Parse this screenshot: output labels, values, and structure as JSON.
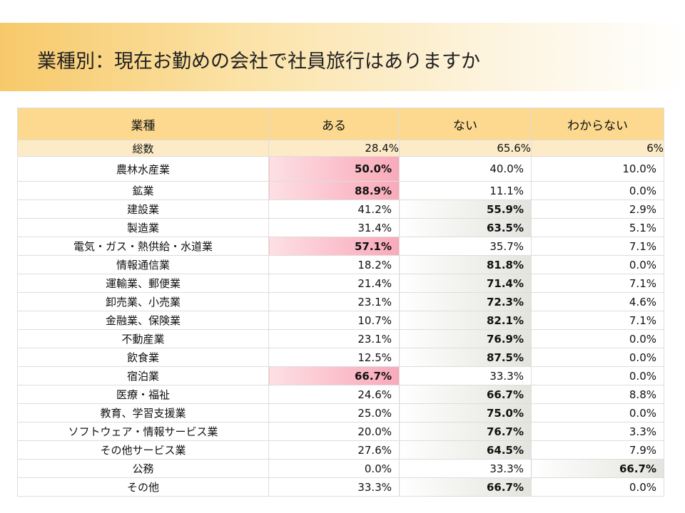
{
  "title": "業種別：現在お勤めの会社で社員旅行はありますか",
  "table": {
    "headers": [
      "業種",
      "ある",
      "ない",
      "わからない"
    ],
    "total": {
      "label": "総数",
      "values": [
        "28.4%",
        "65.6%",
        "6%"
      ]
    },
    "rows": [
      {
        "label": "農林水産業",
        "values": [
          "50.0%",
          "40.0%",
          "10.0%"
        ],
        "highlight_col": 0
      },
      {
        "label": "鉱業",
        "values": [
          "88.9%",
          "11.1%",
          "0.0%"
        ],
        "highlight_col": 0
      },
      {
        "label": "建設業",
        "values": [
          "41.2%",
          "55.9%",
          "2.9%"
        ],
        "highlight_col": 1
      },
      {
        "label": "製造業",
        "values": [
          "31.4%",
          "63.5%",
          "5.1%"
        ],
        "highlight_col": 1
      },
      {
        "label": "電気・ガス・熱供給・水道業",
        "values": [
          "57.1%",
          "35.7%",
          "7.1%"
        ],
        "highlight_col": 0
      },
      {
        "label": "情報通信業",
        "values": [
          "18.2%",
          "81.8%",
          "0.0%"
        ],
        "highlight_col": 1
      },
      {
        "label": "運輸業、郵便業",
        "values": [
          "21.4%",
          "71.4%",
          "7.1%"
        ],
        "highlight_col": 1
      },
      {
        "label": "卸売業、小売業",
        "values": [
          "23.1%",
          "72.3%",
          "4.6%"
        ],
        "highlight_col": 1
      },
      {
        "label": "金融業、保険業",
        "values": [
          "10.7%",
          "82.1%",
          "7.1%"
        ],
        "highlight_col": 1
      },
      {
        "label": "不動産業",
        "values": [
          "23.1%",
          "76.9%",
          "0.0%"
        ],
        "highlight_col": 1
      },
      {
        "label": "飲食業",
        "values": [
          "12.5%",
          "87.5%",
          "0.0%"
        ],
        "highlight_col": 1
      },
      {
        "label": "宿泊業",
        "values": [
          "66.7%",
          "33.3%",
          "0.0%"
        ],
        "highlight_col": 0
      },
      {
        "label": "医療・福祉",
        "values": [
          "24.6%",
          "66.7%",
          "8.8%"
        ],
        "highlight_col": 1
      },
      {
        "label": "教育、学習支援業",
        "values": [
          "25.0%",
          "75.0%",
          "0.0%"
        ],
        "highlight_col": 1
      },
      {
        "label": "ソフトウェア・情報サービス業",
        "values": [
          "20.0%",
          "76.7%",
          "3.3%"
        ],
        "highlight_col": 1
      },
      {
        "label": "その他サービス業",
        "values": [
          "27.6%",
          "64.5%",
          "7.9%"
        ],
        "highlight_col": 1
      },
      {
        "label": "公務",
        "values": [
          "0.0%",
          "33.3%",
          "66.7%"
        ],
        "highlight_col": 2
      },
      {
        "label": "その他",
        "values": [
          "33.3%",
          "66.7%",
          "0.0%"
        ],
        "highlight_col": 1
      }
    ]
  },
  "colors": {
    "header_bg": "#fcd98f",
    "total_bg": "#fcebc6",
    "highlight_yes": "#f9aab9",
    "highlight_no": "#e4e4df"
  }
}
